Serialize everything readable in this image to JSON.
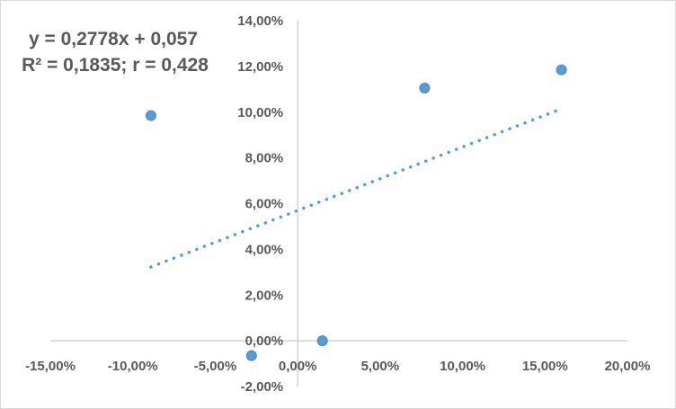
{
  "chart_data": {
    "type": "scatter",
    "title": "",
    "xlabel": "",
    "ylabel": "",
    "xlim": [
      -0.15,
      0.2
    ],
    "ylim": [
      -0.02,
      0.14
    ],
    "x_ticks": [
      -0.15,
      -0.1,
      -0.05,
      0.0,
      0.05,
      0.1,
      0.15,
      0.2
    ],
    "y_ticks": [
      -0.02,
      0.0,
      0.02,
      0.04,
      0.06,
      0.08,
      0.1,
      0.12,
      0.14
    ],
    "x_tick_labels": [
      "-15,00%",
      "-10,00%",
      "-5,00%",
      "0,00%",
      "5,00%",
      "10,00%",
      "15,00%",
      "20,00%"
    ],
    "y_tick_labels": [
      "-2,00%",
      "0,00%",
      "2,00%",
      "4,00%",
      "6,00%",
      "8,00%",
      "10,00%",
      "12,00%",
      "14,00%"
    ],
    "grid": false,
    "series": [
      {
        "points": [
          {
            "x": -0.089,
            "y": 0.0985
          },
          {
            "x": -0.028,
            "y": -0.0065
          },
          {
            "x": 0.015,
            "y": 0.0
          },
          {
            "x": 0.077,
            "y": 0.1105
          },
          {
            "x": 0.16,
            "y": 0.1185
          }
        ],
        "color": "#5b9bd5"
      }
    ],
    "trendline": {
      "slope": 0.2778,
      "intercept": 0.057,
      "x_range": [
        -0.089,
        0.16
      ],
      "style": "dotted",
      "color": "#5b9bd5"
    },
    "annotations": {
      "equation": "y = 0,2778x + 0,057",
      "stats": "R² = 0,1835; r = 0,428"
    }
  }
}
